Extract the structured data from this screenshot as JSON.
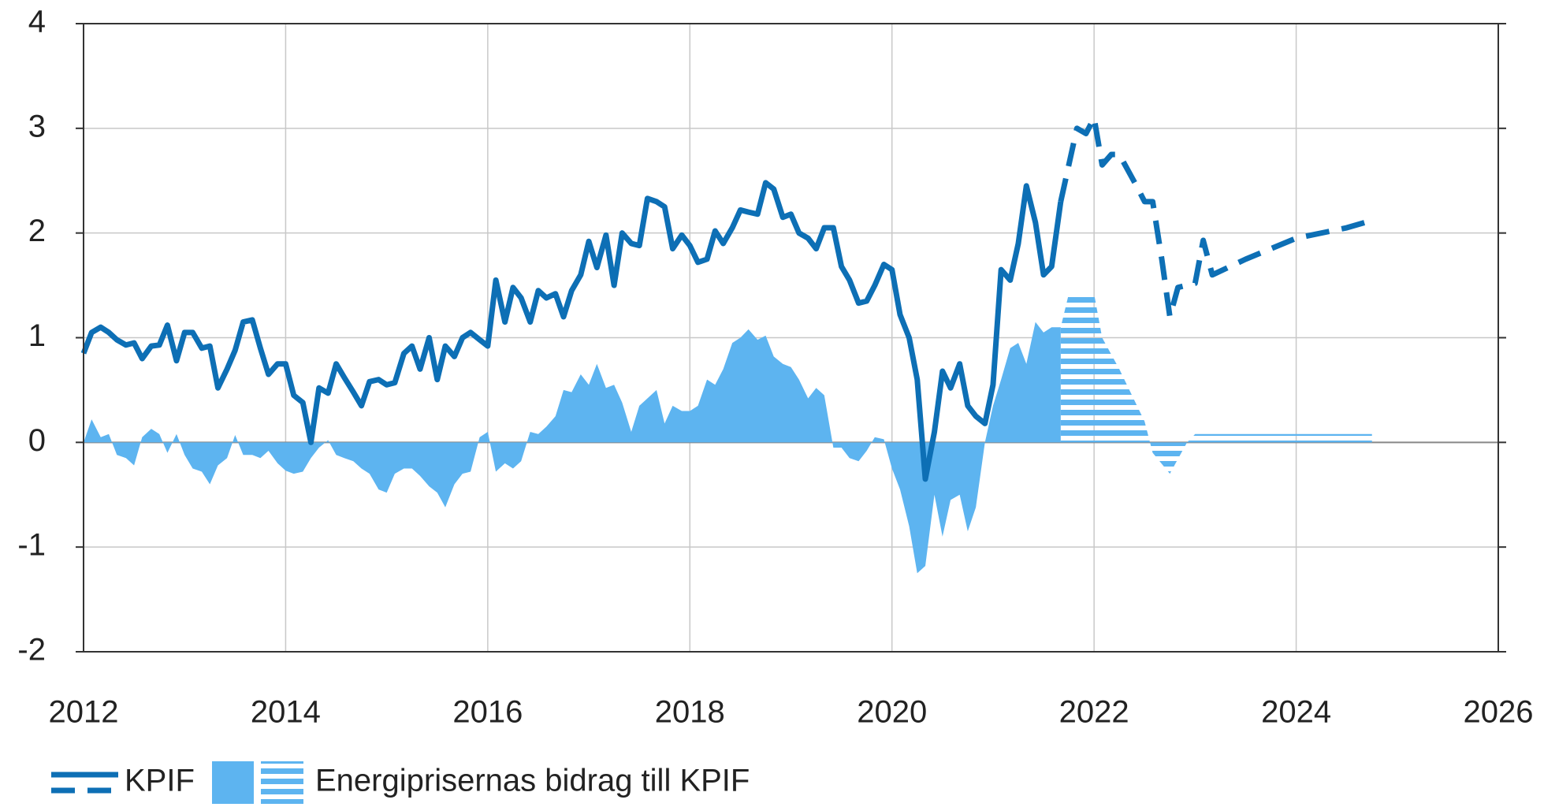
{
  "chart_data": {
    "type": "line-area",
    "xlim": [
      2012,
      2026
    ],
    "xticks": [
      2012,
      2014,
      2016,
      2018,
      2020,
      2022,
      2024,
      2026
    ],
    "ylim": [
      -2,
      4
    ],
    "yticks": [
      -2,
      -1,
      0,
      1,
      2,
      3,
      4
    ],
    "grid": true,
    "legend": "bottom",
    "series": [
      {
        "name": "KPIF",
        "kind": "line",
        "color": "#0d6fb5",
        "x": [
          2012.0,
          2012.08,
          2012.17,
          2012.25,
          2012.33,
          2012.42,
          2012.5,
          2012.58,
          2012.67,
          2012.75,
          2012.83,
          2012.92,
          2013.0,
          2013.08,
          2013.17,
          2013.25,
          2013.33,
          2013.42,
          2013.5,
          2013.58,
          2013.67,
          2013.75,
          2013.83,
          2013.92,
          2014.0,
          2014.08,
          2014.17,
          2014.25,
          2014.33,
          2014.42,
          2014.5,
          2014.58,
          2014.67,
          2014.75,
          2014.83,
          2014.92,
          2015.0,
          2015.08,
          2015.17,
          2015.25,
          2015.33,
          2015.42,
          2015.5,
          2015.58,
          2015.67,
          2015.75,
          2015.83,
          2015.92,
          2016.0,
          2016.08,
          2016.17,
          2016.25,
          2016.33,
          2016.42,
          2016.5,
          2016.58,
          2016.67,
          2016.75,
          2016.83,
          2016.92,
          2017.0,
          2017.08,
          2017.17,
          2017.25,
          2017.33,
          2017.42,
          2017.5,
          2017.58,
          2017.67,
          2017.75,
          2017.83,
          2017.92,
          2018.0,
          2018.08,
          2018.17,
          2018.25,
          2018.33,
          2018.42,
          2018.5,
          2018.58,
          2018.67,
          2018.75,
          2018.83,
          2018.92,
          2019.0,
          2019.08,
          2019.17,
          2019.25,
          2019.33,
          2019.42,
          2019.5,
          2019.58,
          2019.67,
          2019.75,
          2019.83,
          2019.92,
          2020.0,
          2020.08,
          2020.17,
          2020.25,
          2020.33,
          2020.42,
          2020.5,
          2020.58,
          2020.67,
          2020.75,
          2020.83,
          2020.92,
          2021.0,
          2021.08,
          2021.17,
          2021.25,
          2021.33,
          2021.42,
          2021.5,
          2021.58,
          2021.67
        ],
        "values": [
          0.85,
          1.05,
          1.1,
          1.05,
          0.98,
          0.93,
          0.95,
          0.8,
          0.92,
          0.93,
          1.12,
          0.78,
          1.05,
          1.05,
          0.9,
          0.92,
          0.52,
          0.7,
          0.88,
          1.15,
          1.17,
          0.9,
          0.65,
          0.75,
          0.75,
          0.45,
          0.38,
          0.0,
          0.52,
          0.47,
          0.75,
          0.62,
          0.48,
          0.35,
          0.58,
          0.6,
          0.55,
          0.57,
          0.85,
          0.92,
          0.7,
          1.0,
          0.6,
          0.92,
          0.82,
          1.0,
          1.05,
          0.98,
          0.92,
          1.55,
          1.15,
          1.48,
          1.38,
          1.15,
          1.45,
          1.38,
          1.42,
          1.2,
          1.45,
          1.6,
          1.92,
          1.67,
          1.98,
          1.5,
          2.0,
          1.9,
          1.88,
          2.33,
          2.3,
          2.25,
          1.85,
          1.98,
          1.88,
          1.72,
          1.75,
          2.02,
          1.9,
          2.05,
          2.22,
          2.2,
          2.18,
          2.48,
          2.42,
          2.15,
          2.18,
          2.0,
          1.95,
          1.85,
          2.05,
          2.05,
          1.68,
          1.55,
          1.33,
          1.35,
          1.5,
          1.7,
          1.65,
          1.22,
          1.0,
          0.6,
          -0.35,
          0.1,
          0.68,
          0.52,
          0.75,
          0.35,
          0.25,
          0.18,
          0.55,
          1.65,
          1.55,
          1.9,
          2.45,
          2.1,
          1.6,
          1.68,
          2.3
        ]
      },
      {
        "kind": "line",
        "dashed": true,
        "color": "#0d6fb5",
        "x": [
          2021.67,
          2021.83,
          2021.92,
          2022.0,
          2022.08,
          2022.17,
          2022.25,
          2022.42,
          2022.5,
          2022.58,
          2022.67,
          2022.75,
          2022.83,
          2023.0,
          2023.08,
          2023.17,
          2023.5,
          2024.0,
          2024.5,
          2024.75
        ],
        "values": [
          2.3,
          3.0,
          2.95,
          3.1,
          2.65,
          2.75,
          2.75,
          2.45,
          2.3,
          2.3,
          1.75,
          1.2,
          1.48,
          1.52,
          1.93,
          1.6,
          1.75,
          1.95,
          2.05,
          2.12
        ]
      },
      {
        "name": "Energiprisernas bidrag till KPIF",
        "kind": "area",
        "color": "#5db4f0",
        "x": [
          2012.0,
          2012.08,
          2012.17,
          2012.25,
          2012.33,
          2012.42,
          2012.5,
          2012.58,
          2012.67,
          2012.75,
          2012.83,
          2012.92,
          2013.0,
          2013.08,
          2013.17,
          2013.25,
          2013.33,
          2013.42,
          2013.5,
          2013.58,
          2013.67,
          2013.75,
          2013.83,
          2013.92,
          2014.0,
          2014.08,
          2014.17,
          2014.25,
          2014.33,
          2014.42,
          2014.5,
          2014.58,
          2014.67,
          2014.75,
          2014.83,
          2014.92,
          2015.0,
          2015.08,
          2015.17,
          2015.25,
          2015.33,
          2015.42,
          2015.5,
          2015.58,
          2015.67,
          2015.75,
          2015.83,
          2015.92,
          2016.0,
          2016.08,
          2016.17,
          2016.25,
          2016.33,
          2016.42,
          2016.5,
          2016.58,
          2016.67,
          2016.75,
          2016.83,
          2016.92,
          2017.0,
          2017.08,
          2017.17,
          2017.25,
          2017.33,
          2017.42,
          2017.5,
          2017.58,
          2017.67,
          2017.75,
          2017.83,
          2017.92,
          2018.0,
          2018.08,
          2018.17,
          2018.25,
          2018.33,
          2018.42,
          2018.5,
          2018.58,
          2018.67,
          2018.75,
          2018.83,
          2018.92,
          2019.0,
          2019.08,
          2019.17,
          2019.25,
          2019.33,
          2019.42,
          2019.5,
          2019.58,
          2019.67,
          2019.75,
          2019.83,
          2019.92,
          2020.0,
          2020.08,
          2020.17,
          2020.25,
          2020.33,
          2020.42,
          2020.5,
          2020.58,
          2020.67,
          2020.75,
          2020.83,
          2020.92,
          2021.0,
          2021.08,
          2021.17,
          2021.25,
          2021.33,
          2021.42,
          2021.5,
          2021.58,
          2021.67
        ],
        "values": [
          0.0,
          0.22,
          0.05,
          0.08,
          -0.12,
          -0.15,
          -0.22,
          0.05,
          0.13,
          0.08,
          -0.1,
          0.08,
          -0.12,
          -0.25,
          -0.28,
          -0.4,
          -0.22,
          -0.15,
          0.07,
          -0.12,
          -0.12,
          -0.15,
          -0.08,
          -0.2,
          -0.27,
          -0.3,
          -0.28,
          -0.15,
          -0.05,
          0.02,
          -0.12,
          -0.15,
          -0.18,
          -0.25,
          -0.3,
          -0.45,
          -0.48,
          -0.3,
          -0.25,
          -0.25,
          -0.32,
          -0.42,
          -0.48,
          -0.62,
          -0.4,
          -0.3,
          -0.28,
          0.05,
          0.1,
          -0.28,
          -0.2,
          -0.25,
          -0.18,
          0.1,
          0.08,
          0.15,
          0.25,
          0.5,
          0.48,
          0.65,
          0.55,
          0.75,
          0.52,
          0.55,
          0.38,
          0.1,
          0.35,
          0.42,
          0.5,
          0.18,
          0.35,
          0.3,
          0.3,
          0.35,
          0.6,
          0.55,
          0.7,
          0.95,
          1.0,
          1.08,
          0.98,
          1.02,
          0.82,
          0.75,
          0.72,
          0.6,
          0.42,
          0.52,
          0.45,
          -0.05,
          -0.05,
          -0.15,
          -0.18,
          -0.08,
          0.05,
          0.03,
          -0.25,
          -0.45,
          -0.8,
          -1.25,
          -1.18,
          -0.5,
          -0.9,
          -0.55,
          -0.5,
          -0.85,
          -0.62,
          0.0,
          0.35,
          0.6,
          0.9,
          0.95,
          0.75,
          1.15,
          1.05,
          1.1,
          1.1
        ]
      },
      {
        "kind": "area",
        "striped": true,
        "color": "#5db4f0",
        "x": [
          2021.67,
          2021.75,
          2022.0,
          2022.08,
          2022.25,
          2022.5,
          2022.58,
          2022.75,
          2022.92,
          2023.0,
          2024.75
        ],
        "values": [
          1.1,
          1.42,
          1.42,
          1.0,
          0.7,
          0.2,
          -0.1,
          -0.3,
          0.0,
          0.08,
          0.08
        ]
      }
    ]
  }
}
